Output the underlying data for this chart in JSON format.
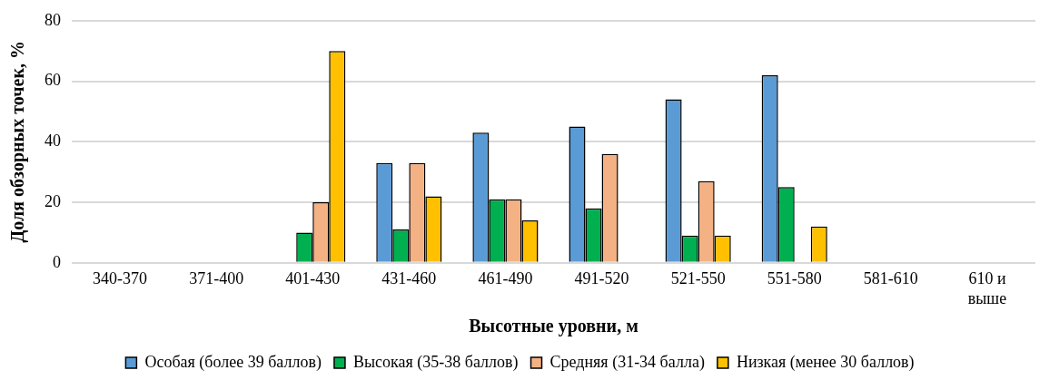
{
  "chart_data": {
    "type": "bar",
    "xlabel": "Высотные уровни, м",
    "ylabel": "Доля обзорных точек, %",
    "categories": [
      "340-370",
      "371-400",
      "401-430",
      "431-460",
      "461-490",
      "491-520",
      "521-550",
      "551-580",
      "581-610",
      "610 и выше"
    ],
    "series": [
      {
        "name": "Особая (более 39 баллов)",
        "color": "#5b9bd5",
        "values": [
          0,
          0,
          0,
          33,
          43,
          45,
          54,
          62,
          0,
          0
        ]
      },
      {
        "name": "Высокая (35-38 баллов)",
        "color": "#00b050",
        "values": [
          0,
          0,
          10,
          11,
          21,
          18,
          9,
          25,
          0,
          0
        ]
      },
      {
        "name": "Средняя (31-34 балла)",
        "color": "#f4b183",
        "values": [
          0,
          0,
          20,
          33,
          21,
          36,
          27,
          0,
          0,
          0
        ]
      },
      {
        "name": "Низкая (менее 30 баллов)",
        "color": "#ffc000",
        "values": [
          0,
          0,
          70,
          22,
          14,
          0,
          9,
          12,
          0,
          0
        ]
      }
    ],
    "ylim": [
      0,
      80
    ],
    "yticks": [
      0,
      20,
      40,
      60,
      80
    ],
    "grid": "y",
    "legend": "bottom"
  }
}
